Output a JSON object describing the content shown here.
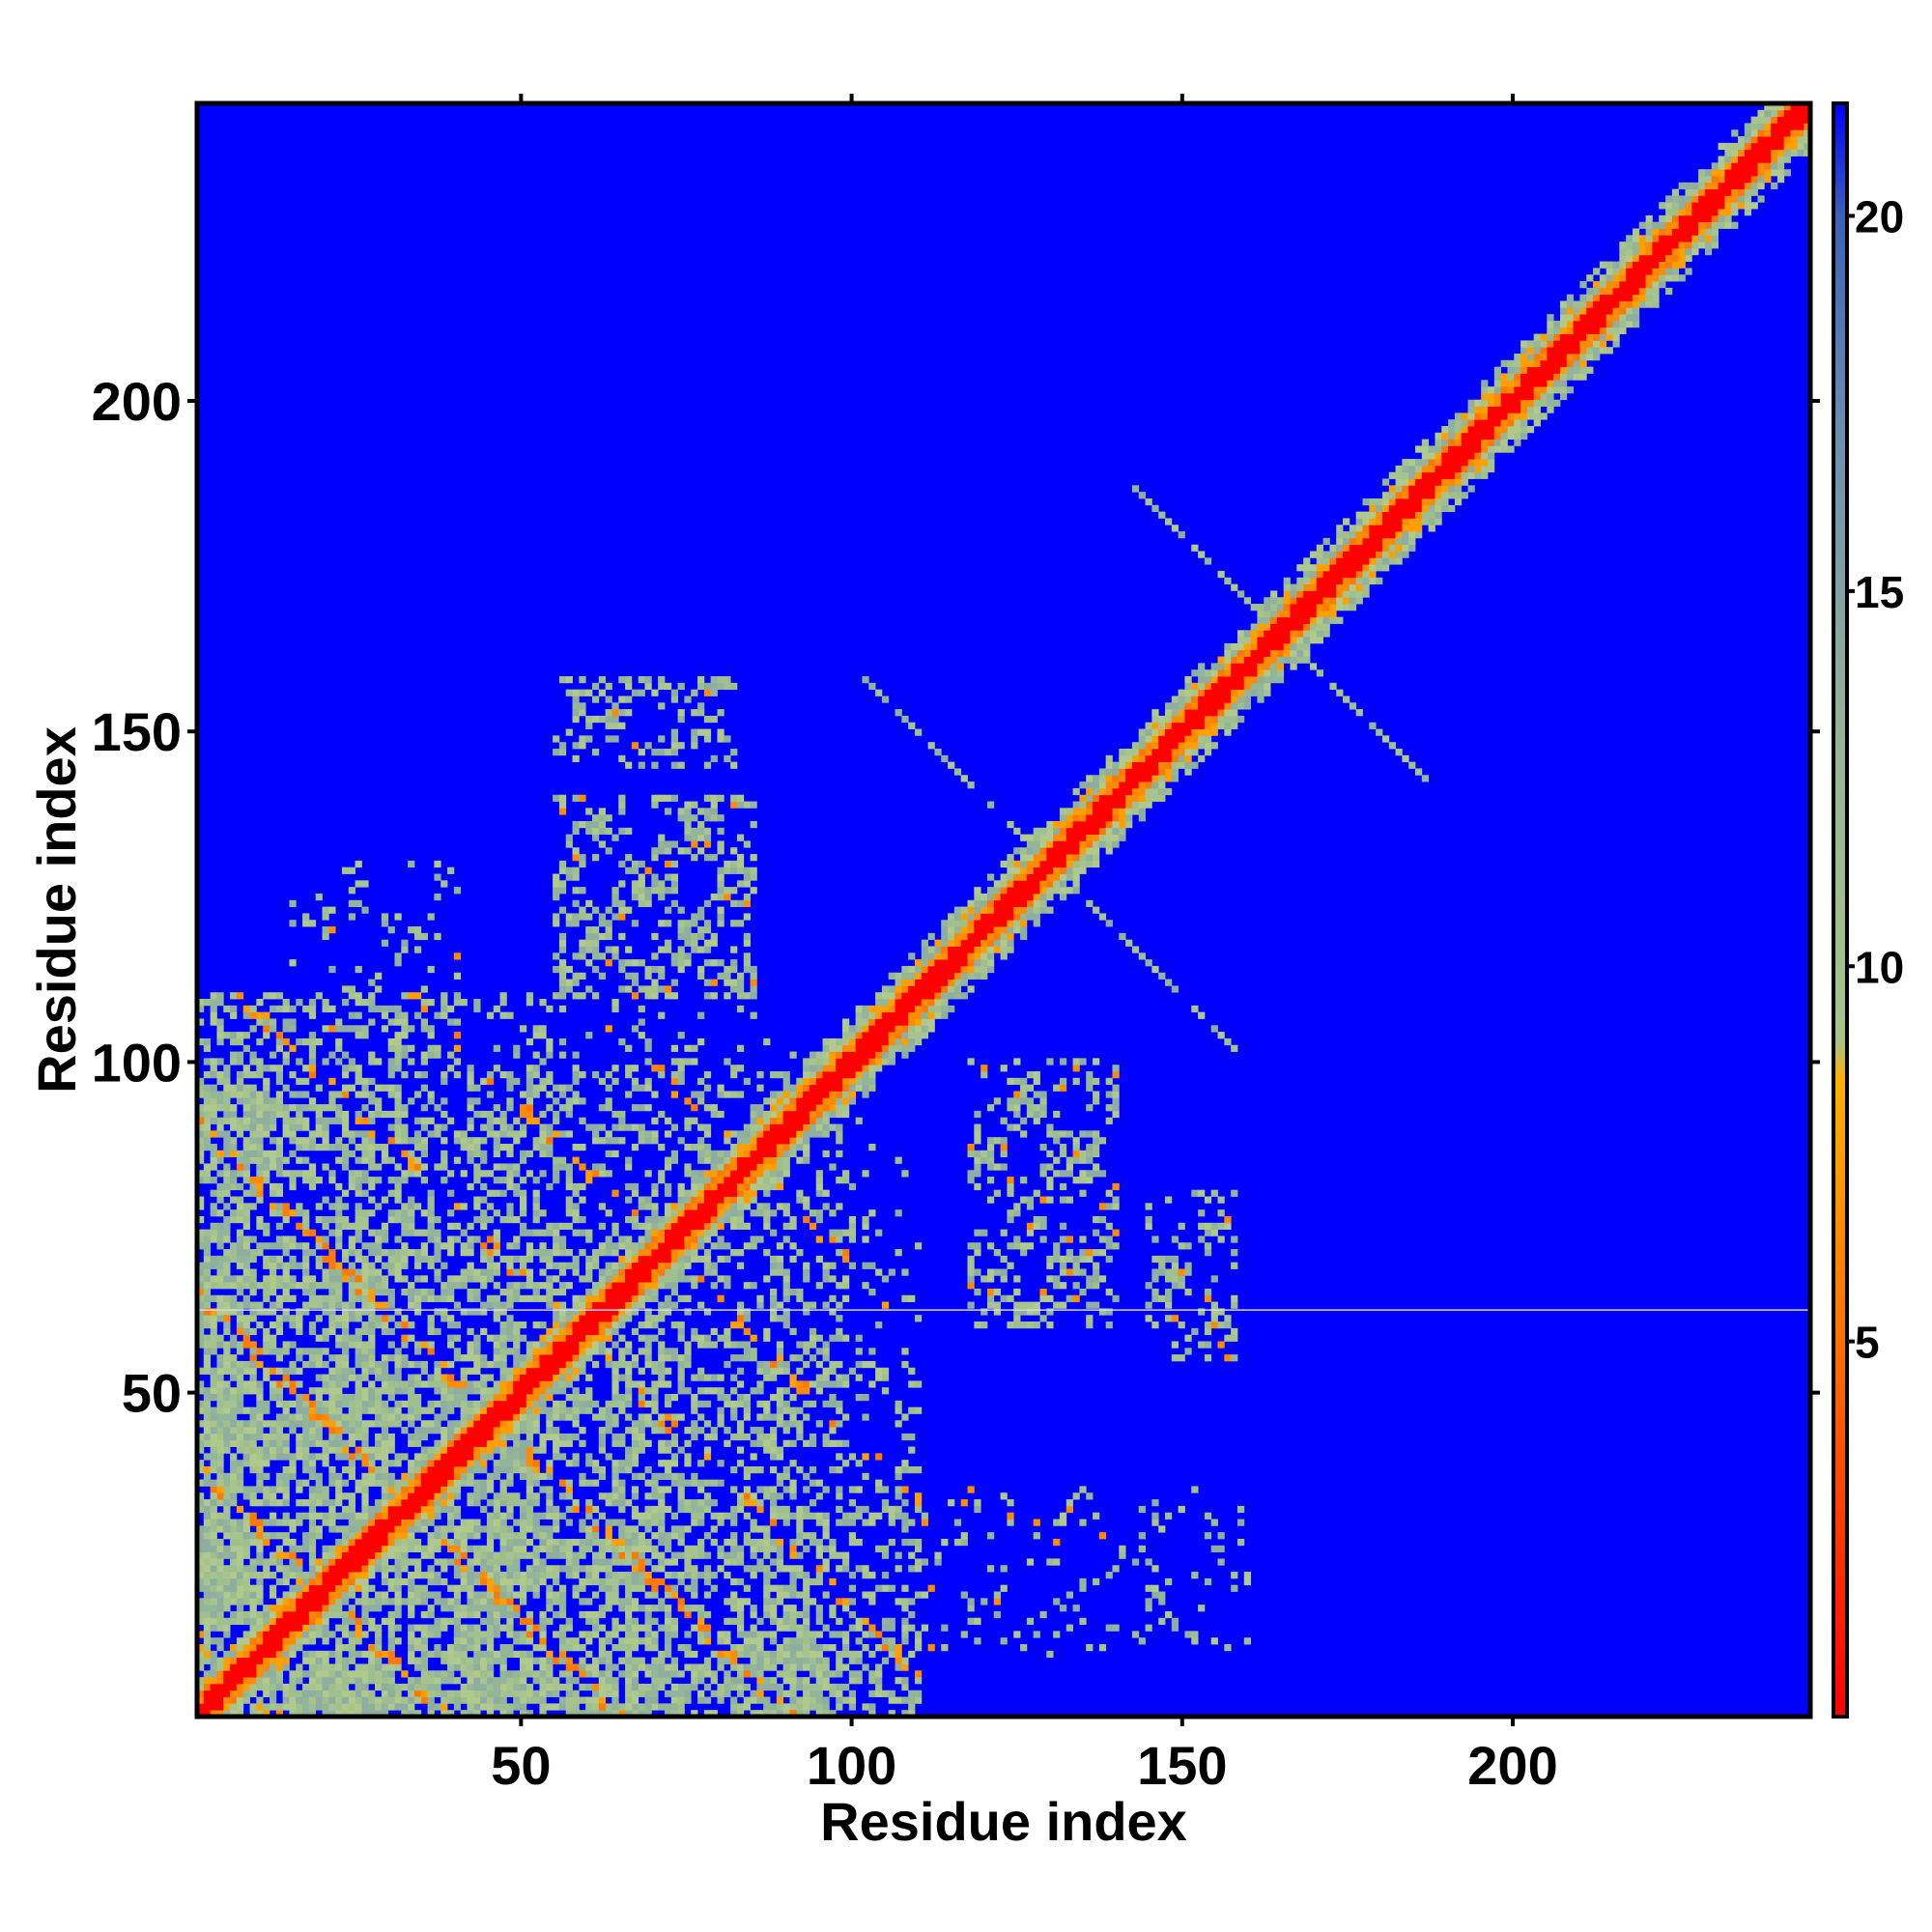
{
  "chart_data": {
    "type": "heatmap",
    "title": "",
    "xlabel": "Residue index",
    "ylabel": "Residue index",
    "xlim": [
      1,
      245
    ],
    "ylim": [
      1,
      245
    ],
    "x_ticks": [
      "50",
      "100",
      "150",
      "200"
    ],
    "y_ticks": [
      "50",
      "100",
      "150",
      "200"
    ],
    "colorbar": {
      "ticks": [
        "5",
        "10",
        "15",
        "20"
      ],
      "range": [
        0,
        21.5
      ],
      "stops": [
        {
          "value": 0,
          "color": "#ff0000"
        },
        {
          "value": 5,
          "color": "#ff7000"
        },
        {
          "value": 8.5,
          "color": "#ffb000"
        },
        {
          "value": 9,
          "color": "#a6c48a"
        },
        {
          "value": 13,
          "color": "#98b398"
        },
        {
          "value": 17,
          "color": "#6f8fb0"
        },
        {
          "value": 20,
          "color": "#3a62b8"
        },
        {
          "value": 21.5,
          "color": "#0000ff"
        }
      ]
    },
    "colors": {
      "background": "#0000ff",
      "close": "#ff0000",
      "near": "#ff8c00",
      "mid": "#9fbf8f"
    },
    "diagonal": {
      "from": 1,
      "to": 245
    },
    "features": [
      {
        "kind": "band",
        "from": 1,
        "to": 245,
        "halfwidth": 7,
        "label": "main diagonal"
      },
      {
        "kind": "block",
        "x": [
          1,
          110
        ],
        "y": [
          1,
          100
        ],
        "label": "N-terminal domain contacts"
      },
      {
        "kind": "block",
        "x": [
          55,
          85
        ],
        "y": [
          110,
          140
        ],
        "label": "contact cluster"
      },
      {
        "kind": "block",
        "x": [
          55,
          80
        ],
        "y": [
          145,
          158
        ],
        "label": "contact cluster"
      },
      {
        "kind": "block",
        "x": [
          120,
          140
        ],
        "y": [
          60,
          100
        ],
        "label": "contact cluster"
      },
      {
        "kind": "block",
        "x": [
          145,
          160
        ],
        "y": [
          55,
          80
        ],
        "label": "contact cluster"
      },
      {
        "kind": "cross",
        "center": [
          130,
          130
        ],
        "label": "crossing strands"
      },
      {
        "kind": "cross",
        "center": [
          165,
          165
        ],
        "label": "crossing strands"
      }
    ]
  }
}
